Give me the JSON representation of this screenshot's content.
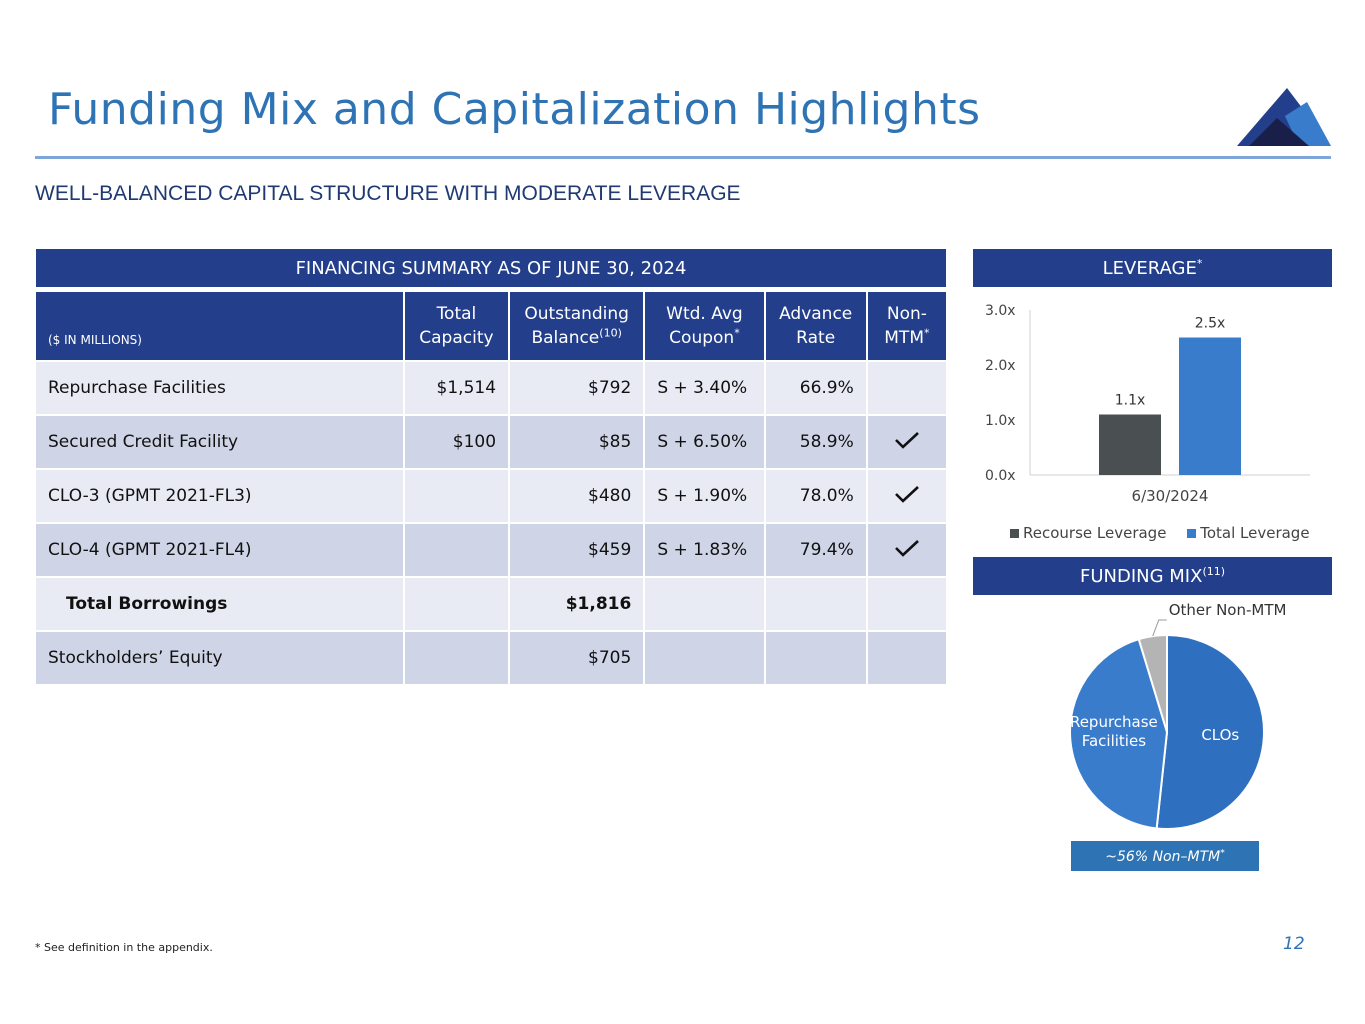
{
  "title": "Funding Mix and Capitalization Highlights",
  "subtitle": "WELL-BALANCED CAPITAL STRUCTURE WITH MODERATE LEVERAGE",
  "financing": {
    "header": "FINANCING SUMMARY AS OF JUNE 30, 2024",
    "units": "($ IN MILLIONS)",
    "columns": [
      {
        "line1": "Total",
        "line2": "Capacity",
        "sup": ""
      },
      {
        "line1": "Outstanding",
        "line2": "Balance",
        "sup": "(10)"
      },
      {
        "line1": "Wtd. Avg",
        "line2": "Coupon",
        "sup": "*"
      },
      {
        "line1": "Advance",
        "line2": "Rate",
        "sup": ""
      },
      {
        "line1": "Non-",
        "line2": "MTM",
        "sup": "*"
      }
    ],
    "rows": [
      {
        "name": "Repurchase Facilities",
        "capacity": "$1,514",
        "balance": "$792",
        "coupon": "S + 3.40%",
        "advance": "66.9%",
        "non_mtm": false
      },
      {
        "name": "Secured Credit Facility",
        "capacity": "$100",
        "balance": "$85",
        "coupon": "S + 6.50%",
        "advance": "58.9%",
        "non_mtm": true
      },
      {
        "name": "CLO-3 (GPMT 2021-FL3)",
        "capacity": "",
        "balance": "$480",
        "coupon": "S + 1.90%",
        "advance": "78.0%",
        "non_mtm": true
      },
      {
        "name": "CLO-4 (GPMT 2021-FL4)",
        "capacity": "",
        "balance": "$459",
        "coupon": "S + 1.83%",
        "advance": "79.4%",
        "non_mtm": true
      },
      {
        "name": "Total Borrowings",
        "capacity": "",
        "balance": "$1,816",
        "coupon": "",
        "advance": "",
        "non_mtm": false
      },
      {
        "name": "Stockholders’ Equity",
        "capacity": "",
        "balance": "$705",
        "coupon": "",
        "advance": "",
        "non_mtm": false
      }
    ]
  },
  "leverage": {
    "header": "LEVERAGE",
    "header_sup": "*"
  },
  "funding_mix": {
    "header": "FUNDING MIX",
    "header_sup": "(11)",
    "non_mtm_note": "~56% Non–MTM",
    "non_mtm_note_sup": "*"
  },
  "colors": {
    "navy": "#233f8b",
    "blue": "#2e74b5",
    "recourse": "#4a5052",
    "total": "#3a7ccc",
    "clos": "#2f6fc0",
    "repo": "#3a7ccc",
    "other": "#b4b4b4"
  },
  "chart_data": [
    {
      "type": "bar",
      "title": "LEVERAGE*",
      "categories": [
        "6/30/2024"
      ],
      "series": [
        {
          "name": "Recourse Leverage",
          "values": [
            1.1
          ],
          "labels": [
            "1.1x"
          ]
        },
        {
          "name": "Total Leverage",
          "values": [
            2.5
          ],
          "labels": [
            "2.5x"
          ]
        }
      ],
      "ylim": [
        0,
        3
      ],
      "yticks": [
        "0.0x",
        "1.0x",
        "2.0x",
        "3.0x"
      ],
      "grid": false,
      "legend": "bottom"
    },
    {
      "type": "pie",
      "title": "FUNDING MIX(11)",
      "labels": [
        "CLOs",
        "Repurchase Facilities",
        "Other Non-MTM"
      ],
      "values": [
        51.7,
        43.6,
        4.7
      ]
    }
  ],
  "footnote": "* See definition in the appendix.",
  "page_number": "12"
}
